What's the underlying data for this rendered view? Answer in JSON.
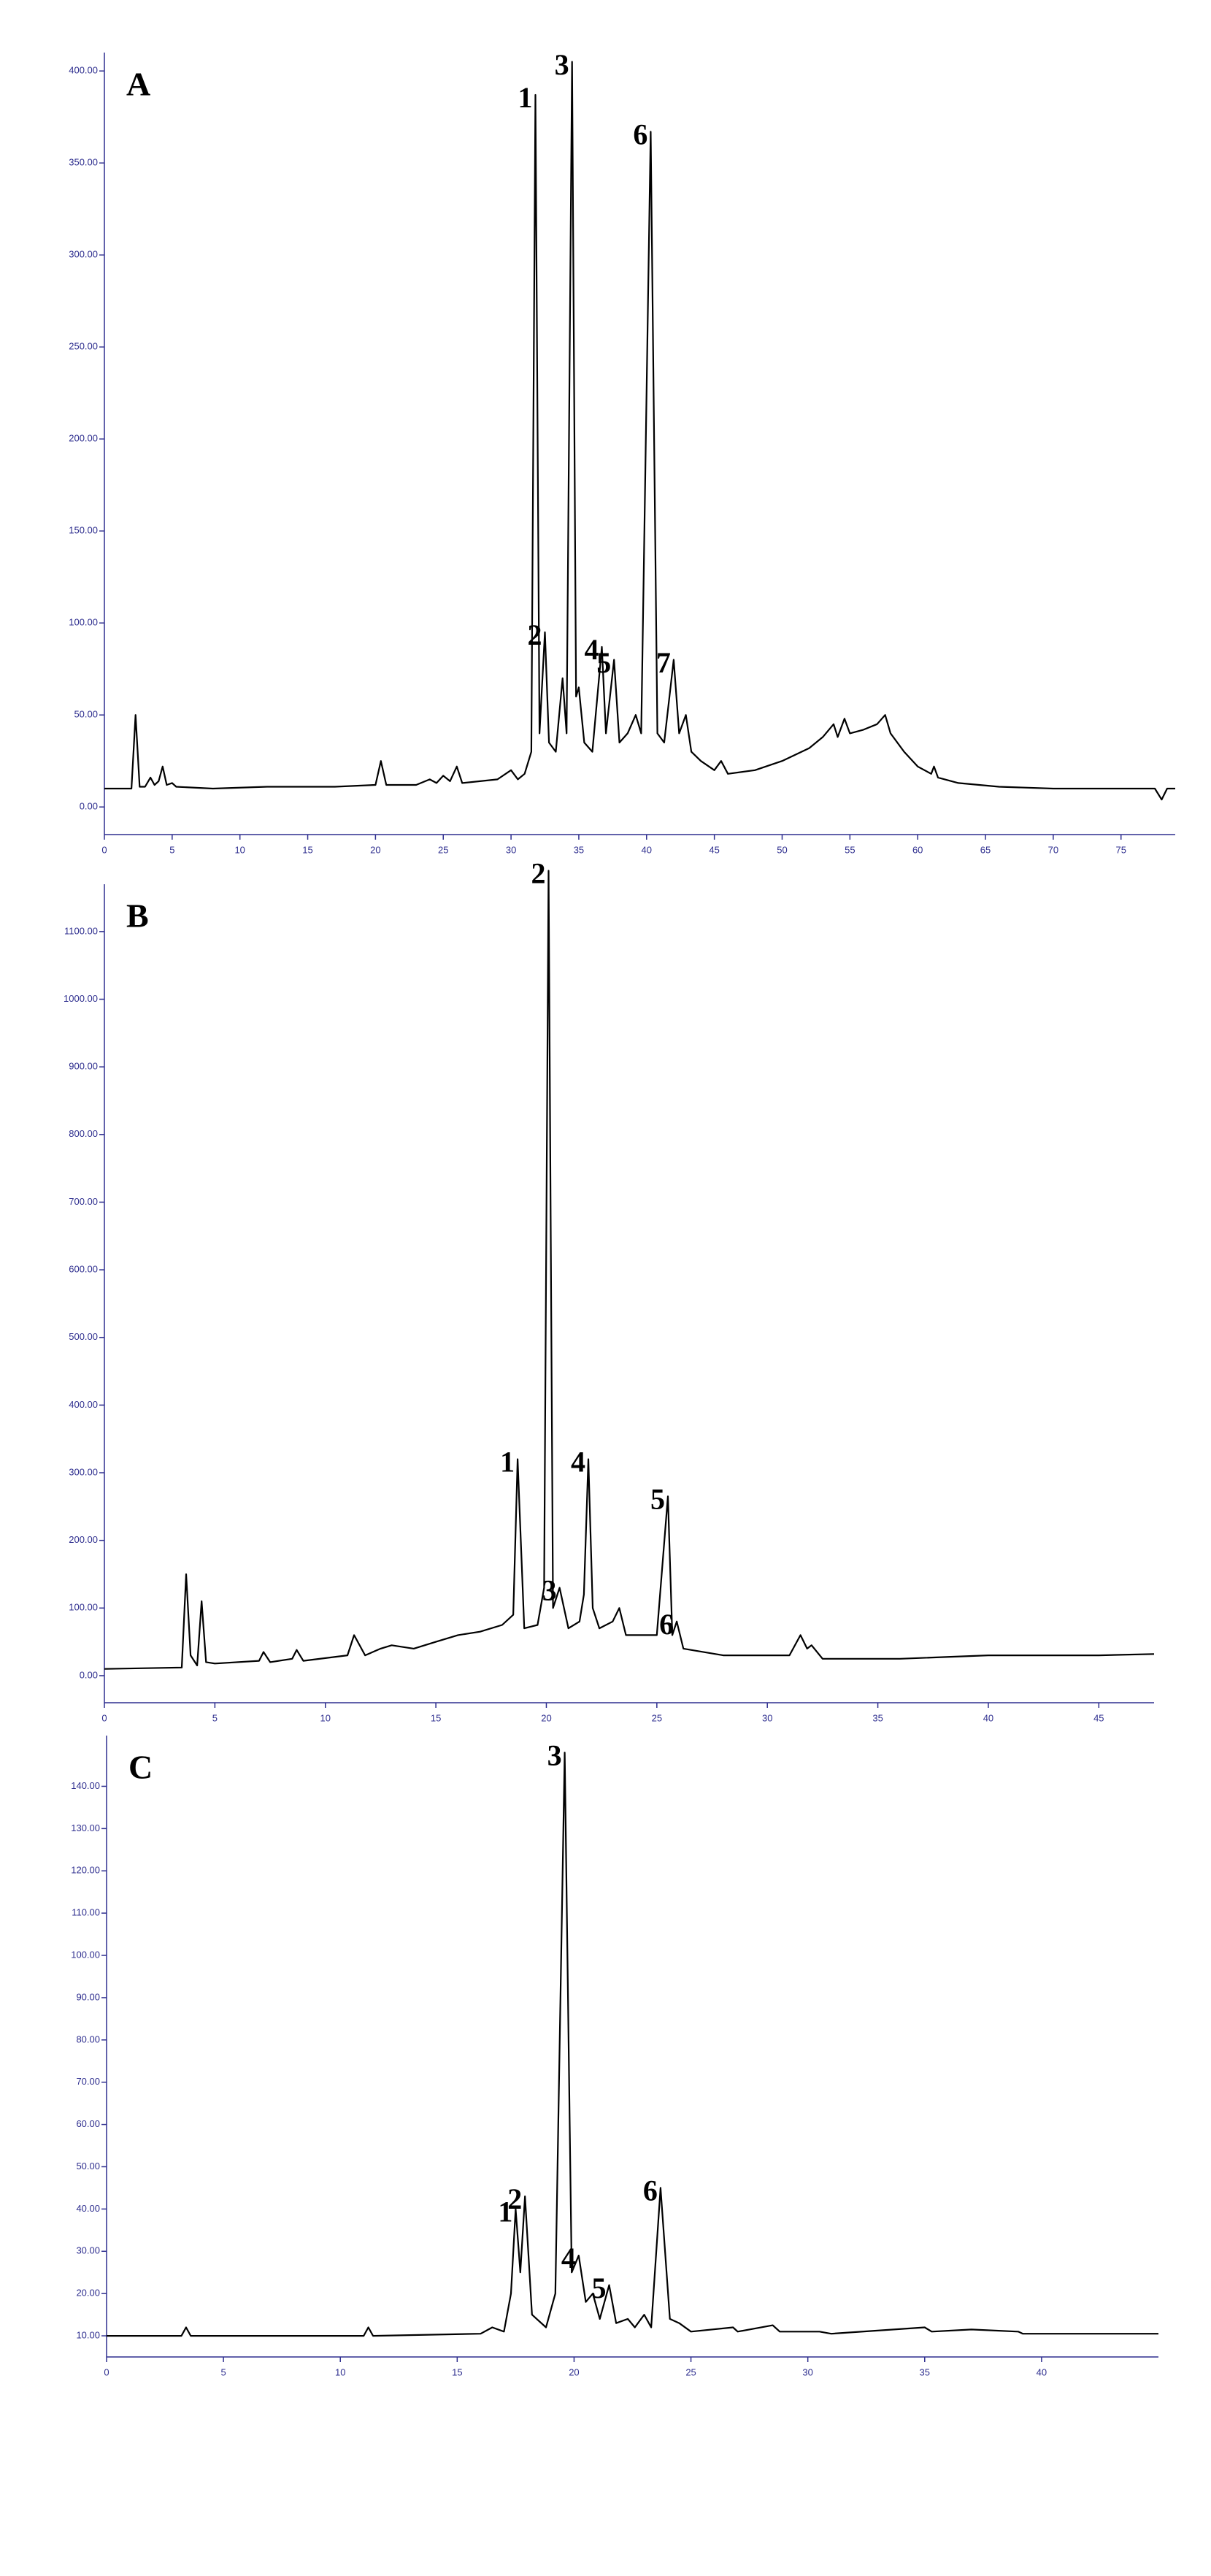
{
  "chart_data": [
    {
      "type": "line",
      "title": "A",
      "axis_color": "#2f2f8f",
      "x": [
        0,
        2,
        2.3,
        2.6,
        3,
        3.4,
        3.7,
        4,
        4.3,
        4.6,
        5,
        5.3,
        8,
        12,
        17,
        20,
        20.4,
        20.8,
        23,
        24,
        24.5,
        25,
        25.5,
        26,
        26.4,
        29,
        30,
        30.5,
        31,
        31.5,
        31.8,
        32.1,
        32.5,
        32.8,
        33.3,
        33.8,
        34.1,
        34.5,
        34.8,
        35,
        35.4,
        36,
        36.7,
        37,
        37.6,
        38,
        38.6,
        39.2,
        39.6,
        40.3,
        40.8,
        41.3,
        42,
        42.4,
        42.9,
        43.3,
        44,
        45,
        45.5,
        46,
        48,
        50,
        52,
        53,
        53.8,
        54.1,
        54.6,
        55,
        56,
        57,
        57.6,
        58,
        59,
        60,
        61,
        61.2,
        61.5,
        63,
        66,
        70,
        75,
        77.5,
        78,
        78.4,
        79
      ],
      "series": [
        {
          "color": "#000000",
          "values": [
            10,
            10,
            50,
            11,
            11,
            16,
            12,
            14,
            22,
            12,
            13,
            11,
            10,
            11,
            11,
            12,
            25,
            12,
            12,
            15,
            13,
            17,
            14,
            22,
            13,
            15,
            20,
            15,
            18,
            30,
            387,
            40,
            95,
            35,
            30,
            70,
            40,
            405,
            60,
            65,
            35,
            30,
            87,
            40,
            80,
            35,
            40,
            50,
            40,
            367,
            40,
            35,
            80,
            40,
            50,
            30,
            25,
            20,
            25,
            18,
            20,
            25,
            32,
            38,
            45,
            38,
            48,
            40,
            42,
            45,
            50,
            40,
            30,
            22,
            18,
            22,
            16,
            13,
            11,
            10,
            10,
            10,
            4,
            10,
            10
          ]
        }
      ],
      "xlim": [
        0,
        79
      ],
      "ylim": [
        -15,
        410
      ],
      "xticks": [
        0,
        5,
        10,
        15,
        20,
        25,
        30,
        35,
        40,
        45,
        50,
        55,
        60,
        65,
        70,
        75
      ],
      "yticks": [
        {
          "value": 0,
          "label": "0.00"
        },
        {
          "value": 50,
          "label": "50.00"
        },
        {
          "value": 100,
          "label": "100.00"
        },
        {
          "value": 150,
          "label": "150.00"
        },
        {
          "value": 200,
          "label": "200.00"
        },
        {
          "value": 250,
          "label": "250.00"
        },
        {
          "value": 300,
          "label": "300.00"
        },
        {
          "value": 350,
          "label": "350.00"
        },
        {
          "value": 400,
          "label": "400.00"
        }
      ],
      "annotations": [
        {
          "text": "1",
          "x": 31.8,
          "y": 387
        },
        {
          "text": "2",
          "x": 32.5,
          "y": 95
        },
        {
          "text": "3",
          "x": 34.5,
          "y": 405
        },
        {
          "text": "4",
          "x": 36.7,
          "y": 87
        },
        {
          "text": "5",
          "x": 37.6,
          "y": 80
        },
        {
          "text": "6",
          "x": 40.3,
          "y": 367
        },
        {
          "text": "7",
          "x": 42,
          "y": 80
        }
      ]
    },
    {
      "type": "line",
      "title": "B",
      "axis_color": "#2f2f8f",
      "x": [
        0,
        3.5,
        3.7,
        3.9,
        4.2,
        4.4,
        4.6,
        5,
        7,
        7.2,
        7.5,
        8.5,
        8.7,
        9,
        11,
        11.3,
        11.8,
        12.5,
        13,
        14,
        15,
        16,
        17,
        18,
        18.5,
        18.7,
        19,
        19.6,
        19.9,
        20.1,
        20.3,
        20.6,
        21,
        21.5,
        21.7,
        21.9,
        22.1,
        22.4,
        23,
        23.3,
        23.6,
        25,
        25.5,
        25.7,
        25.9,
        26.2,
        28,
        31,
        31.5,
        31.8,
        32,
        32.5,
        36,
        40,
        45,
        47.5
      ],
      "series": [
        {
          "color": "#000000",
          "values": [
            10,
            12,
            150,
            30,
            15,
            110,
            20,
            18,
            22,
            35,
            20,
            25,
            38,
            22,
            30,
            60,
            30,
            40,
            45,
            40,
            50,
            60,
            65,
            75,
            90,
            320,
            70,
            75,
            130,
            1190,
            100,
            130,
            70,
            80,
            120,
            320,
            100,
            70,
            80,
            100,
            60,
            60,
            265,
            60,
            80,
            40,
            30,
            30,
            60,
            40,
            45,
            25,
            25,
            30,
            30,
            32
          ]
        }
      ],
      "xlim": [
        0,
        47.5
      ],
      "ylim": [
        -40,
        1170
      ],
      "xticks": [
        0,
        5,
        10,
        15,
        20,
        25,
        30,
        35,
        40,
        45
      ],
      "yticks": [
        {
          "value": 0,
          "label": "0.00"
        },
        {
          "value": 100,
          "label": "100.00"
        },
        {
          "value": 200,
          "label": "200.00"
        },
        {
          "value": 300,
          "label": "300.00"
        },
        {
          "value": 400,
          "label": "400.00"
        },
        {
          "value": 500,
          "label": "500.00"
        },
        {
          "value": 600,
          "label": "600.00"
        },
        {
          "value": 700,
          "label": "700.00"
        },
        {
          "value": 800,
          "label": "800.00"
        },
        {
          "value": 900,
          "label": "900.00"
        },
        {
          "value": 1000,
          "label": "1000.00"
        },
        {
          "value": 1100,
          "label": "1100.00"
        }
      ],
      "annotations": [
        {
          "text": "1",
          "x": 18.7,
          "y": 320
        },
        {
          "text": "2",
          "x": 20.1,
          "y": 1190
        },
        {
          "text": "3",
          "x": 20.6,
          "y": 130
        },
        {
          "text": "4",
          "x": 21.9,
          "y": 320
        },
        {
          "text": "5",
          "x": 25.5,
          "y": 265
        },
        {
          "text": "6",
          "x": 25.9,
          "y": 80
        }
      ]
    },
    {
      "type": "line",
      "title": "C",
      "axis_color": "#2f2f8f",
      "x": [
        0,
        3.2,
        3.4,
        3.6,
        11,
        11.2,
        11.4,
        16,
        16.5,
        17,
        17.3,
        17.5,
        17.7,
        17.9,
        18.2,
        18.8,
        19.2,
        19.6,
        19.9,
        20.2,
        20.5,
        20.8,
        21.1,
        21.5,
        21.8,
        22.3,
        22.6,
        23,
        23.3,
        23.7,
        24.1,
        24.5,
        25,
        26.8,
        27,
        28.5,
        28.8,
        30.5,
        31,
        35,
        35.3,
        37,
        39,
        39.2,
        45
      ],
      "series": [
        {
          "color": "#000000",
          "values": [
            10,
            10,
            12,
            10,
            10,
            12,
            10,
            10.5,
            12,
            11,
            20,
            40,
            25,
            43,
            15,
            12,
            20,
            148,
            25,
            29,
            18,
            20,
            14,
            22,
            13,
            14,
            12,
            15,
            12,
            45,
            14,
            13,
            11,
            12,
            11,
            12.5,
            11,
            11,
            10.5,
            12,
            11,
            11.5,
            11,
            10.5,
            10.5
          ]
        }
      ],
      "xlim": [
        0,
        45
      ],
      "ylim": [
        5,
        152
      ],
      "xticks": [
        0,
        5,
        10,
        15,
        20,
        25,
        30,
        35,
        40
      ],
      "yticks": [
        {
          "value": 10,
          "label": "10.00"
        },
        {
          "value": 20,
          "label": "20.00"
        },
        {
          "value": 30,
          "label": "30.00"
        },
        {
          "value": 40,
          "label": "40.00"
        },
        {
          "value": 50,
          "label": "50.00"
        },
        {
          "value": 60,
          "label": "60.00"
        },
        {
          "value": 70,
          "label": "70.00"
        },
        {
          "value": 80,
          "label": "80.00"
        },
        {
          "value": 90,
          "label": "90.00"
        },
        {
          "value": 100,
          "label": "100.00"
        },
        {
          "value": 110,
          "label": "110.00"
        },
        {
          "value": 120,
          "label": "120.00"
        },
        {
          "value": 130,
          "label": "130.00"
        },
        {
          "value": 140,
          "label": "140.00"
        }
      ],
      "annotations": [
        {
          "text": "1",
          "x": 17.5,
          "y": 40
        },
        {
          "text": "2",
          "x": 17.9,
          "y": 43
        },
        {
          "text": "3",
          "x": 19.6,
          "y": 148
        },
        {
          "text": "4",
          "x": 20.2,
          "y": 29
        },
        {
          "text": "5",
          "x": 21.5,
          "y": 22
        },
        {
          "text": "6",
          "x": 23.7,
          "y": 45
        }
      ]
    }
  ]
}
